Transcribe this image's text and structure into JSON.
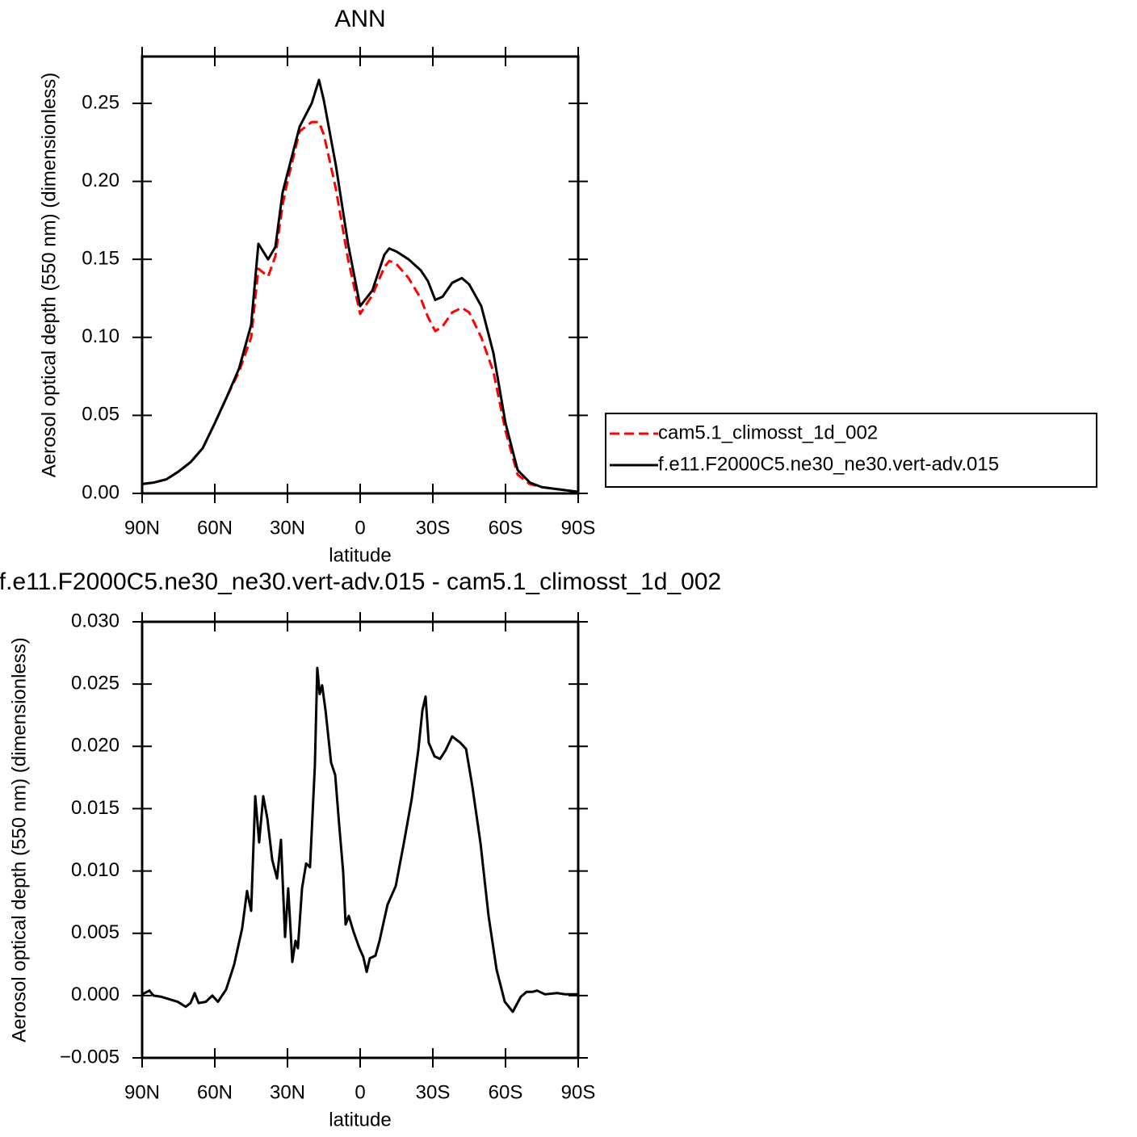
{
  "chart_data": [
    {
      "type": "line",
      "title": "ANN",
      "x_label": "latitude",
      "y_label": "Aerosol optical depth (550 nm) (dimensionless)",
      "legend": "right",
      "x": [
        90,
        85,
        80,
        75,
        70,
        65,
        60,
        55,
        50,
        45,
        42,
        38,
        35,
        32,
        30,
        25,
        20,
        17,
        15,
        10,
        5,
        0,
        -5,
        -10,
        -12,
        -15,
        -20,
        -25,
        -28,
        -31,
        -34,
        -38,
        -42,
        -45,
        -50,
        -55,
        -60,
        -65,
        -70,
        -75,
        -80,
        -85,
        -90
      ],
      "series": [
        {
          "name": "cam5.1_climosst_1d_002",
          "color": "#ff0000",
          "line_style": "dashed",
          "values": [
            0.006,
            0.007,
            0.009,
            0.014,
            0.02,
            0.029,
            0.045,
            0.062,
            0.078,
            0.1,
            0.144,
            0.139,
            0.152,
            0.185,
            0.2,
            0.232,
            0.238,
            0.238,
            0.23,
            0.195,
            0.15,
            0.115,
            0.127,
            0.145,
            0.149,
            0.147,
            0.138,
            0.125,
            0.113,
            0.104,
            0.107,
            0.116,
            0.119,
            0.116,
            0.1,
            0.078,
            0.04,
            0.012,
            0.006,
            0.004,
            0.003,
            0.002,
            0.001
          ]
        },
        {
          "name": "f.e11.F2000C5.ne30_ne30.vert-adv.015",
          "color": "#000000",
          "line_style": "solid",
          "values": [
            0.006,
            0.007,
            0.009,
            0.014,
            0.02,
            0.029,
            0.045,
            0.062,
            0.08,
            0.108,
            0.16,
            0.15,
            0.158,
            0.193,
            0.205,
            0.235,
            0.25,
            0.265,
            0.252,
            0.21,
            0.16,
            0.12,
            0.13,
            0.153,
            0.157,
            0.155,
            0.15,
            0.143,
            0.136,
            0.124,
            0.126,
            0.135,
            0.138,
            0.134,
            0.12,
            0.09,
            0.045,
            0.015,
            0.007,
            0.004,
            0.003,
            0.002,
            0.001
          ]
        }
      ],
      "xlim": [
        90,
        -90
      ],
      "xticks": [
        {
          "value": 90,
          "label": "90N"
        },
        {
          "value": 60,
          "label": "60N"
        },
        {
          "value": 30,
          "label": "30N"
        },
        0,
        {
          "value": -30,
          "label": "30S"
        },
        {
          "value": -60,
          "label": "60S"
        },
        {
          "value": -90,
          "label": "90S"
        }
      ],
      "ylim": [
        0,
        0.28
      ],
      "yticks": [
        {
          "value": 0,
          "label": "0.00"
        },
        0.05,
        {
          "value": 0.1,
          "label": "0.10"
        },
        0.15,
        {
          "value": 0.2,
          "label": "0.20"
        },
        0.25
      ]
    },
    {
      "type": "line",
      "title": "f.e11.F2000C5.ne30_ne30.vert-adv.015 - cam5.1_climosst_1d_002",
      "x_label": "latitude",
      "y_label": "Aerosol optical depth (550 nm) (dimensionless)",
      "x": [
        90,
        87,
        85.3,
        82,
        78.7,
        75.3,
        72,
        70,
        68.3,
        66.7,
        63.7,
        61,
        58.7,
        55.3,
        52,
        48.7,
        46.7,
        45,
        43.3,
        41.7,
        40,
        38.3,
        36.3,
        34.3,
        32.7,
        31,
        29.7,
        28,
        26.7,
        25.7,
        24,
        22.3,
        20.7,
        18.7,
        17.7,
        16.7,
        15.7,
        14.3,
        12,
        10.3,
        8.7,
        7,
        6,
        4.7,
        2.7,
        0.3,
        -1.3,
        -2.7,
        -4,
        -6.3,
        -8,
        -11.3,
        -14.7,
        -18,
        -21.3,
        -24,
        -25.7,
        -27,
        -28.3,
        -30.7,
        -33,
        -35.3,
        -38,
        -41.3,
        -43.7,
        -46.3,
        -49.7,
        -53,
        -56.3,
        -59.7,
        -63,
        -66.3,
        -68.7,
        -71.3,
        -73,
        -76.3,
        -81.3,
        -84.7,
        -90
      ],
      "series": [
        {
          "color": "#000000",
          "line_style": "solid",
          "values": [
            0.0001,
            0.0004,
            0,
            -0.0001,
            -0.0003,
            -0.0005,
            -0.0009,
            -0.0006,
            0.0002,
            -0.0006,
            -0.0005,
            0,
            -0.0005,
            0.0005,
            0.0025,
            0.0054,
            0.0084,
            0.0068,
            0.016,
            0.0123,
            0.016,
            0.0142,
            0.0109,
            0.0094,
            0.0125,
            0.0047,
            0.0086,
            0.0027,
            0.0044,
            0.0038,
            0.0086,
            0.0106,
            0.0103,
            0.0184,
            0.0263,
            0.0242,
            0.0249,
            0.0229,
            0.0187,
            0.0177,
            0.0138,
            0.0099,
            0.0057,
            0.0064,
            0.0051,
            0.0038,
            0.0031,
            0.0019,
            0.003,
            0.0032,
            0.0044,
            0.0073,
            0.0088,
            0.0122,
            0.0158,
            0.0197,
            0.0229,
            0.024,
            0.0203,
            0.0192,
            0.019,
            0.0197,
            0.0208,
            0.0203,
            0.0198,
            0.0168,
            0.0122,
            0.0064,
            0.0021,
            -0.0005,
            -0.0013,
            -0.0001,
            0.0003,
            0.0003,
            0.0004,
            0.0001,
            0.0002,
            0.0001,
            0.0001
          ]
        }
      ],
      "xlim": [
        90,
        -90
      ],
      "xticks": [
        {
          "value": 90,
          "label": "90N"
        },
        {
          "value": 60,
          "label": "60N"
        },
        {
          "value": 30,
          "label": "30N"
        },
        0,
        {
          "value": -30,
          "label": "30S"
        },
        {
          "value": -60,
          "label": "60S"
        },
        {
          "value": -90,
          "label": "90S"
        }
      ],
      "ylim": [
        -0.005,
        0.03
      ],
      "yticks": [
        {
          "value": -0.005,
          "label": "−0.005"
        },
        {
          "value": 0,
          "label": "0.000"
        },
        0.005,
        {
          "value": 0.01,
          "label": "0.010"
        },
        0.015,
        {
          "value": 0.02,
          "label": "0.020"
        },
        0.025,
        {
          "value": 0.03,
          "label": "0.030"
        }
      ]
    }
  ]
}
